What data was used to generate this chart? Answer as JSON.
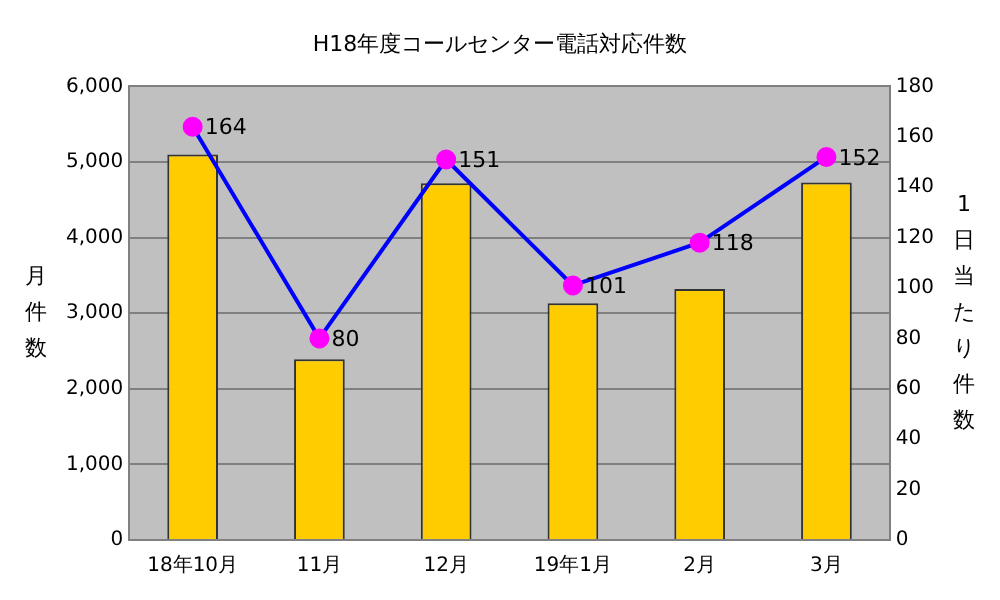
{
  "chart_data": {
    "type": "bar",
    "title": "H18年度コールセンター電話対応件数",
    "ylabel": "月件数",
    "y2label": "1日当たり件数",
    "categories": [
      "18年10月",
      "11月",
      "12月",
      "19年1月",
      "2月",
      "3月"
    ],
    "series": [
      {
        "color": "#ffcc00",
        "values": [
          5100,
          2390,
          4720,
          3130,
          3320,
          4730
        ]
      },
      {
        "type": "line",
        "axis": "y2",
        "color": "#0000ff",
        "marker": "circle",
        "values": [
          164,
          80,
          151,
          101,
          118,
          152
        ],
        "value_labels": [
          "164",
          "80",
          "151",
          "101",
          "118",
          "152"
        ]
      }
    ],
    "ylim": [
      0,
      6000
    ],
    "yticks": [
      {
        "value": 0,
        "label": "0"
      },
      {
        "value": 1000,
        "label": "1,000"
      },
      {
        "value": 2000,
        "label": "2,000"
      },
      {
        "value": 3000,
        "label": "3,000"
      },
      {
        "value": 4000,
        "label": "4,000"
      },
      {
        "value": 5000,
        "label": "5,000"
      },
      {
        "value": 6000,
        "label": "6,000"
      }
    ],
    "y2lim": [
      0,
      180
    ],
    "y2ticks": [
      0,
      20,
      40,
      60,
      80,
      100,
      120,
      140,
      160,
      180
    ],
    "grid": "y",
    "legend": false
  }
}
